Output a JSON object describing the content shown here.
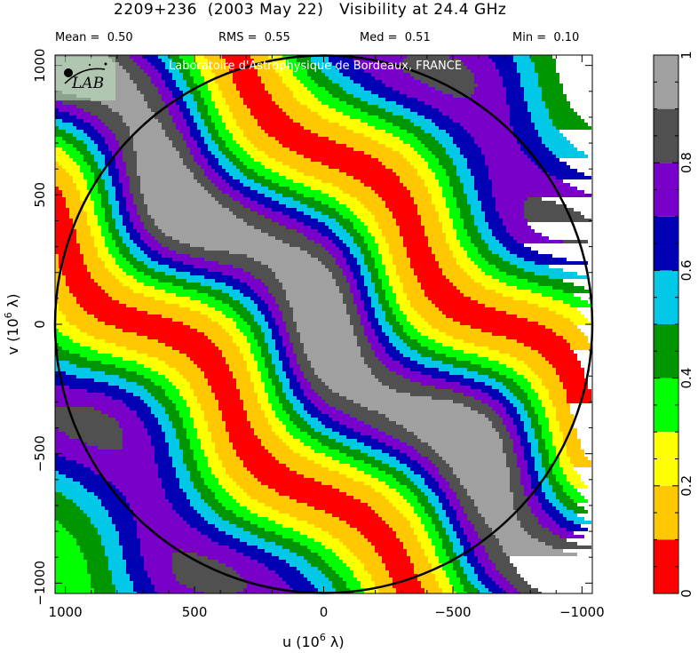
{
  "title": "2209+236  (2003 May 22)   Visibility at 24.4 GHz",
  "stats": {
    "mean_label": "Mean =",
    "mean_value": "0.50",
    "rms_label": "RMS =",
    "rms_value": "0.55",
    "med_label": "Med =",
    "med_value": "0.51",
    "min_label": "Min =",
    "min_value": "0.10"
  },
  "watermark": "Laboratoire d'Astrophysique de Bordeaux, FRANCE",
  "logo_text": "LAB",
  "colors": {
    "red": "#ff0000",
    "orange": "#ffc800",
    "yellow": "#ffff00",
    "green": "#00ff00",
    "darkgreen": "#009600",
    "cyan": "#00c8e6",
    "blue": "#0000b4",
    "purple": "#7800c8",
    "darkgray": "#505050",
    "gray": "#a0a0a0",
    "circle": "#000000"
  },
  "chart_data": {
    "type": "heatmap",
    "title": "2209+236  (2003 May 22)   Visibility at 24.4 GHz",
    "xlabel": "u  (10^6 λ)",
    "ylabel": "v  (10^6 λ)",
    "xlim": [
      1040,
      -1040
    ],
    "ylim": [
      -1040,
      1040
    ],
    "x_ticks": [
      1000,
      500,
      0,
      -500,
      -1000
    ],
    "x_tick_labels": [
      "1000",
      "500",
      "0",
      "−500",
      "−1000"
    ],
    "y_ticks": [
      1000,
      500,
      0,
      -500,
      -1000
    ],
    "y_tick_labels": [
      "1000",
      "500",
      "0",
      "−500",
      "−1000"
    ],
    "colorbar": {
      "levels": [
        0,
        0.1,
        0.2,
        0.3,
        0.4,
        0.5,
        0.6,
        0.7,
        0.8,
        0.9,
        1.0
      ],
      "tick_values": [
        0,
        0.2,
        0.4,
        0.6,
        0.8,
        1
      ],
      "tick_labels": [
        "0",
        "0.2",
        "0.4",
        "0.6",
        "0.8",
        "1"
      ],
      "colors": [
        "#ff0000",
        "#ffc800",
        "#ffff00",
        "#00ff00",
        "#009600",
        "#00c8e6",
        "#0000b4",
        "#7800c8",
        "#505050",
        "#a0a0a0"
      ]
    },
    "circle_radius": 1040,
    "grid": false
  }
}
